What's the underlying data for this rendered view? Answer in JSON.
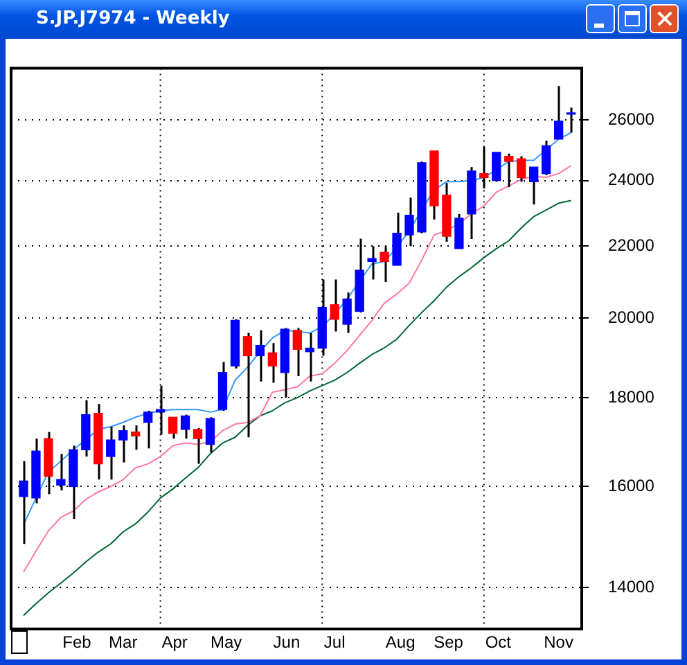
{
  "chart_data": {
    "type": "candlestick",
    "title": "S.JP.J7974 - Weekly",
    "x": [
      "--01-09",
      "--01-16",
      "--01-23",
      "--01-30",
      "--02-06",
      "--02-13",
      "--02-20",
      "--02-27",
      "--03-06",
      "--03-13",
      "--03-20",
      "--03-27",
      "--04-03",
      "--04-10",
      "--04-17",
      "--04-24",
      "--05-01",
      "--05-08",
      "--05-15",
      "--05-22",
      "--05-29",
      "--06-05",
      "--06-12",
      "--06-19",
      "--06-26",
      "--07-03",
      "--07-10",
      "--07-17",
      "--07-24",
      "--07-31",
      "--08-07",
      "--08-14",
      "--08-21",
      "--08-28",
      "--09-04",
      "--09-11",
      "--09-18",
      "--09-25",
      "--10-02",
      "--10-09",
      "--10-16",
      "--10-23",
      "--10-30",
      "--11-06",
      "--11-13"
    ],
    "ohlc": [
      [
        15790,
        16550,
        14830,
        16120
      ],
      [
        15760,
        17050,
        15650,
        16770
      ],
      [
        17050,
        17200,
        15840,
        16220
      ],
      [
        16030,
        16710,
        15920,
        16150
      ],
      [
        16000,
        16890,
        15330,
        16800
      ],
      [
        16800,
        17940,
        16650,
        17600
      ],
      [
        17630,
        17850,
        16150,
        16490
      ],
      [
        16650,
        17320,
        16150,
        17020
      ],
      [
        17020,
        17350,
        16520,
        17230
      ],
      [
        17200,
        17350,
        16800,
        17110
      ],
      [
        17420,
        17690,
        16830,
        17660
      ],
      [
        17660,
        18290,
        17140,
        17720
      ],
      [
        17540,
        17540,
        17050,
        17170
      ],
      [
        17260,
        17600,
        17050,
        17570
      ],
      [
        17260,
        17290,
        16490,
        17050
      ],
      [
        16920,
        17540,
        16740,
        17510
      ],
      [
        17720,
        18870,
        17690,
        18610
      ],
      [
        18770,
        19970,
        18710,
        19940
      ],
      [
        19520,
        19610,
        17080,
        19030
      ],
      [
        19030,
        19680,
        18390,
        19290
      ],
      [
        19100,
        19350,
        18360,
        18770
      ],
      [
        18610,
        19740,
        18000,
        19710
      ],
      [
        19680,
        19740,
        18520,
        19190
      ],
      [
        19130,
        19610,
        18390,
        19220
      ],
      [
        19220,
        21050,
        19030,
        20290
      ],
      [
        20360,
        21050,
        19650,
        19970
      ],
      [
        19840,
        20690,
        19610,
        20510
      ],
      [
        20180,
        22220,
        20150,
        21310
      ],
      [
        21560,
        22000,
        21050,
        21640
      ],
      [
        21820,
        22000,
        20980,
        21560
      ],
      [
        21450,
        23000,
        21450,
        22380
      ],
      [
        22330,
        23460,
        22000,
        22920
      ],
      [
        22420,
        24610,
        22380,
        24570
      ],
      [
        24960,
        24960,
        22790,
        23210
      ],
      [
        23540,
        23920,
        22130,
        22290
      ],
      [
        21930,
        22960,
        21930,
        22830
      ],
      [
        22960,
        24430,
        22210,
        24300
      ],
      [
        24220,
        25090,
        23750,
        24090
      ],
      [
        24000,
        24910,
        23960,
        24910
      ],
      [
        24780,
        24870,
        23790,
        24610
      ],
      [
        24700,
        24780,
        23960,
        24090
      ],
      [
        23960,
        24430,
        23250,
        24430
      ],
      [
        24220,
        25300,
        24170,
        25130
      ],
      [
        25350,
        27200,
        25350,
        25960
      ],
      [
        26200,
        26430,
        25570,
        26200
      ]
    ],
    "colors": [
      "#0000ff",
      "#0000ff",
      "#ff0000",
      "#0000ff",
      "#0000ff",
      "#0000ff",
      "#ff0000",
      "#0000ff",
      "#0000ff",
      "#ff0000",
      "#0000ff",
      "#0000ff",
      "#ff0000",
      "#0000ff",
      "#ff0000",
      "#0000ff",
      "#0000ff",
      "#0000ff",
      "#ff0000",
      "#0000ff",
      "#ff0000",
      "#0000ff",
      "#ff0000",
      "#0000ff",
      "#0000ff",
      "#ff0000",
      "#0000ff",
      "#0000ff",
      "#0000ff",
      "#ff0000",
      "#0000ff",
      "#0000ff",
      "#0000ff",
      "#ff0000",
      "#ff0000",
      "#0000ff",
      "#0000ff",
      "#ff0000",
      "#0000ff",
      "#ff0000",
      "#ff0000",
      "#0000ff",
      "#0000ff",
      "#0000ff",
      "#0000ff"
    ],
    "series": [
      {
        "type": "line",
        "color": "#3399ff",
        "values": [
          15210,
          15760,
          16310,
          16550,
          16800,
          17020,
          17260,
          17320,
          17420,
          17540,
          17630,
          17690,
          17720,
          17720,
          17720,
          17660,
          17720,
          18420,
          18740,
          19130,
          19480,
          19680,
          19650,
          19610,
          19770,
          20110,
          20510,
          null,
          21490,
          21560,
          21960,
          22460,
          null,
          23710,
          23960,
          23960,
          24000,
          24090,
          24350,
          24610,
          24650,
          24650,
          25000,
          25350,
          25570
        ]
      },
      {
        "type": "line",
        "color": "#ff77aa",
        "values": [
          14290,
          14690,
          15090,
          15360,
          15490,
          15730,
          15890,
          16000,
          16150,
          16400,
          16490,
          16650,
          16890,
          16950,
          16920,
          16980,
          17230,
          17380,
          17420,
          17570,
          18130,
          18190,
          18260,
          18520,
          18580,
          18840,
          19160,
          19550,
          19940,
          20400,
          20650,
          20950,
          21600,
          22330,
          22460,
          22670,
          22960,
          23210,
          23630,
          23830,
          24040,
          24130,
          24100,
          24220,
          24480
        ]
      },
      {
        "type": "line",
        "color": "#006633",
        "values": [
          13490,
          13700,
          13900,
          14080,
          14270,
          14480,
          14670,
          14830,
          15070,
          15230,
          15470,
          15760,
          15950,
          16180,
          16400,
          16710,
          16950,
          17080,
          17350,
          17570,
          17690,
          17880,
          18000,
          18160,
          18290,
          18420,
          18610,
          18840,
          19060,
          19230,
          19450,
          19810,
          20150,
          20470,
          20840,
          21130,
          21380,
          21670,
          21930,
          22160,
          22540,
          22880,
          23080,
          23290,
          23370
        ]
      }
    ],
    "xlim": [
      "--01-02",
      "--11-19"
    ],
    "xticks": [
      {
        "value": "--02-08",
        "label": "Feb"
      },
      {
        "value": "--03-06",
        "label": "Mar"
      },
      {
        "value": "--04-04",
        "label": "Apr"
      },
      {
        "value": "--05-03",
        "label": "May"
      },
      {
        "value": "--06-06",
        "label": "Jun"
      },
      {
        "value": "--07-03",
        "label": "Jul"
      },
      {
        "value": "--08-09",
        "label": "Aug"
      },
      {
        "value": "--09-05",
        "label": "Sep"
      },
      {
        "value": "--10-03",
        "label": "Oct"
      },
      {
        "value": "--11-06",
        "label": "Nov"
      }
    ],
    "ylim": [
      13250,
      27850
    ],
    "yticks": [
      14000,
      16000,
      18000,
      20000,
      22000,
      24000,
      26000
    ],
    "log": true,
    "grid": "y",
    "ref_lines": [
      {
        "axis": "x",
        "value": "--03-27",
        "line_style": "dotted"
      },
      {
        "axis": "x",
        "value": "--06-26",
        "line_style": "dotted"
      },
      {
        "axis": "x",
        "value": "--09-25",
        "line_style": "dotted"
      }
    ]
  }
}
